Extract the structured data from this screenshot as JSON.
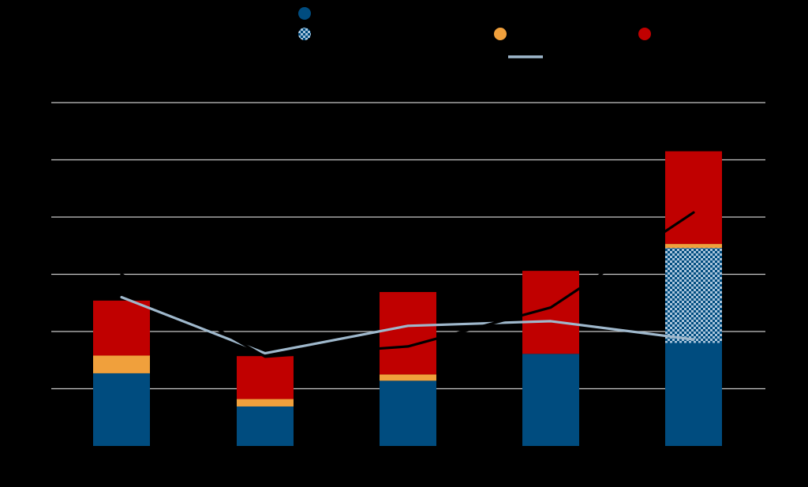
{
  "chart_data": {
    "type": "bar",
    "stacked": true,
    "categories": [
      "",
      "",
      "",
      "",
      ""
    ],
    "ylim": [
      0,
      6
    ],
    "grid": true,
    "legend_position": "top",
    "colors": {
      "background": "#000000",
      "gridline": "#c8c8c8",
      "series_blue": "#004c7f",
      "series_blue_pattern_light": "#a9c5dc",
      "series_orange": "#f0a03c",
      "series_red": "#c00000",
      "line_light": "#9fb8cc",
      "line_dark": "#000000"
    },
    "series": [
      {
        "key": "blue",
        "values": [
          1.27,
          0.69,
          1.14,
          1.61,
          1.8
        ],
        "color": "#004c7f"
      },
      {
        "key": "blue_pattern",
        "values": [
          0,
          0,
          0,
          0,
          1.66
        ],
        "color": "#004c7f",
        "pattern": "checker"
      },
      {
        "key": "orange",
        "values": [
          0.31,
          0.13,
          0.11,
          0,
          0.07
        ],
        "color": "#f0a03c"
      },
      {
        "key": "red",
        "values": [
          0.96,
          0.75,
          1.44,
          1.45,
          1.62
        ],
        "color": "#c00000"
      }
    ],
    "lines": [
      {
        "key": "light_line",
        "values": [
          2.6,
          1.62,
          2.1,
          2.18,
          1.86
        ],
        "color": "#9fb8cc"
      },
      {
        "key": "dark_line",
        "values": [
          3.0,
          1.56,
          1.74,
          2.42,
          4.08
        ],
        "color": "#000000"
      }
    ],
    "legend": [
      {
        "marker": "dot",
        "color": "#004c7f"
      },
      {
        "marker": "dot-pattern",
        "color": "#004c7f"
      },
      {
        "marker": "dot",
        "color": "#f0a03c"
      },
      {
        "marker": "line",
        "color": "#9fb8cc"
      },
      {
        "marker": "dot",
        "color": "#c00000"
      }
    ]
  }
}
